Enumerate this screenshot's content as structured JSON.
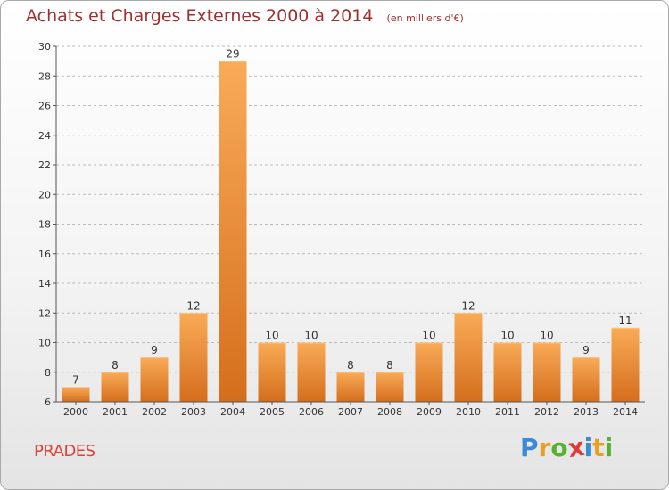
{
  "title": "Achats et Charges Externes 2000 à 2014",
  "subtitle": "(en milliers d'€)",
  "commune": "PRADES",
  "brand": {
    "letters": [
      "P",
      "r",
      "o",
      "x",
      "i",
      "t",
      "i"
    ],
    "colors": [
      "#3b8ad6",
      "#e8a020",
      "#58b030",
      "#e03a3a",
      "#3b8ad6",
      "#e8a020",
      "#58b030"
    ]
  },
  "colors": {
    "title": "#a03030",
    "bar_top": "#f9ab58",
    "bar_bottom": "#d46e1c",
    "grid": "#bbbbbb",
    "commune": "#e0403a"
  },
  "chart_data": {
    "type": "bar",
    "categories": [
      "2000",
      "2001",
      "2002",
      "2003",
      "2004",
      "2005",
      "2006",
      "2007",
      "2008",
      "2009",
      "2010",
      "2011",
      "2012",
      "2013",
      "2014"
    ],
    "values": [
      7,
      8,
      9,
      12,
      29,
      10,
      10,
      8,
      8,
      10,
      12,
      10,
      10,
      9,
      11
    ],
    "ylim": [
      6,
      30
    ],
    "yticks": [
      6,
      8,
      10,
      12,
      14,
      16,
      18,
      20,
      22,
      24,
      26,
      28,
      30
    ],
    "grid": "horizontal dashed",
    "xlabel": "",
    "ylabel": ""
  }
}
